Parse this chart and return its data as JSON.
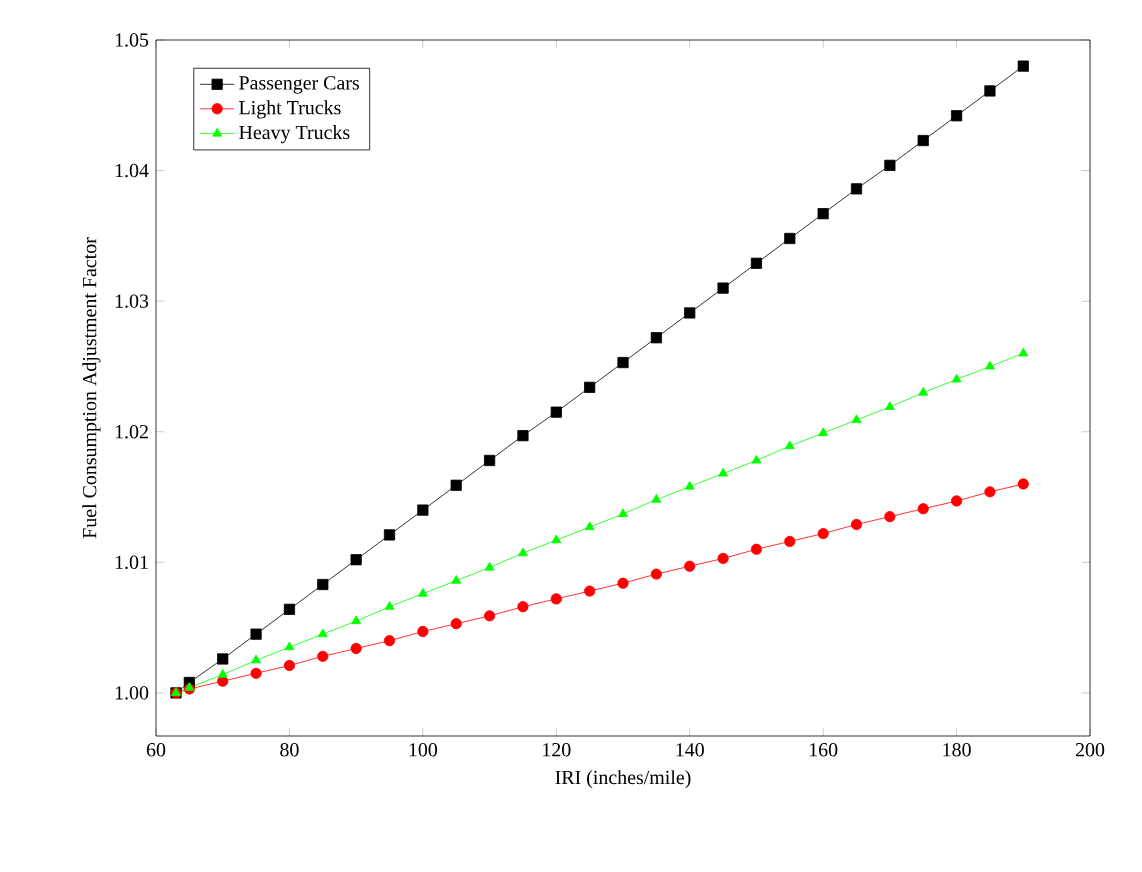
{
  "chart_data": {
    "type": "line",
    "xlabel": "IRI (inches/mile)",
    "ylabel": "Fuel Consumption Adjustment Factor",
    "x": [
      63,
      65,
      70,
      75,
      80,
      85,
      90,
      95,
      100,
      105,
      110,
      115,
      120,
      125,
      130,
      135,
      140,
      145,
      150,
      155,
      160,
      165,
      170,
      175,
      180,
      185,
      190
    ],
    "series": [
      {
        "name": "Passenger Cars",
        "color": "#000000",
        "marker": "square",
        "values": [
          1.0,
          1.0008,
          1.0026,
          1.0045,
          1.0064,
          1.0083,
          1.0102,
          1.0121,
          1.014,
          1.0159,
          1.0178,
          1.0197,
          1.0215,
          1.0234,
          1.0253,
          1.0272,
          1.0291,
          1.031,
          1.0329,
          1.0348,
          1.0367,
          1.0386,
          1.0404,
          1.0423,
          1.0442,
          1.0461,
          1.048
        ]
      },
      {
        "name": "Light Trucks",
        "color": "#ff0000",
        "marker": "circle",
        "values": [
          1.0,
          1.0003,
          1.0009,
          1.0015,
          1.0021,
          1.0028,
          1.0034,
          1.004,
          1.0047,
          1.0053,
          1.0059,
          1.0066,
          1.0072,
          1.0078,
          1.0084,
          1.0091,
          1.0097,
          1.0103,
          1.011,
          1.0116,
          1.0122,
          1.0129,
          1.0135,
          1.0141,
          1.0147,
          1.0154,
          1.016
        ]
      },
      {
        "name": "Heavy Trucks",
        "color": "#00ff00",
        "marker": "triangle",
        "values": [
          1.0,
          1.0004,
          1.0014,
          1.0025,
          1.0035,
          1.0045,
          1.0055,
          1.0066,
          1.0076,
          1.0086,
          1.0096,
          1.0107,
          1.0117,
          1.0127,
          1.0137,
          1.0148,
          1.0158,
          1.0168,
          1.0178,
          1.0189,
          1.0199,
          1.0209,
          1.0219,
          1.023,
          1.024,
          1.025,
          1.026
        ]
      }
    ],
    "xlim": [
      60,
      200
    ],
    "xticks": [
      60,
      80,
      100,
      120,
      140,
      160,
      180,
      200
    ],
    "ylim": [
      0.9967,
      1.05
    ],
    "yticks": [
      {
        "value": 1.0,
        "label": "1.00"
      },
      {
        "value": 1.01,
        "label": "1.01"
      },
      {
        "value": 1.02,
        "label": "1.02"
      },
      {
        "value": 1.03,
        "label": "1.03"
      },
      {
        "value": 1.04,
        "label": "1.04"
      },
      {
        "value": 1.05,
        "label": "1.05"
      }
    ],
    "legend": "top left",
    "grid": false,
    "line_style": "solid"
  }
}
